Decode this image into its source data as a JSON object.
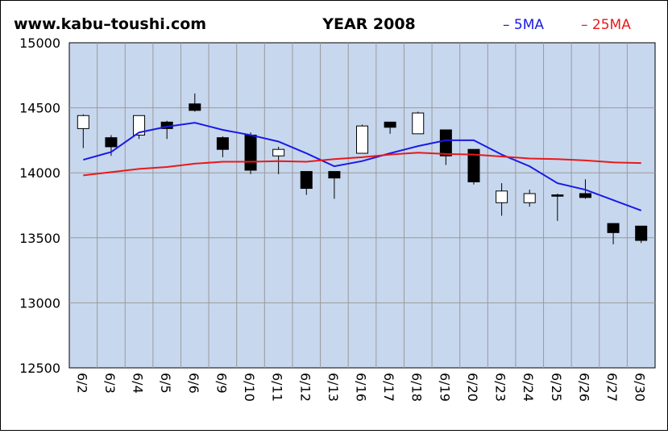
{
  "header": {
    "site": "www.kabu–toushi.com",
    "title": "YEAR 2008",
    "legend_5ma": "– 5MA",
    "legend_25ma": "– 25MA"
  },
  "colors": {
    "plot_bg": "#c7d7ee",
    "ma5": "#1a1ae6",
    "ma25": "#e81a1a",
    "grid": "#9a9a9a",
    "frame": "#000000",
    "up_fill": "#ffffff",
    "down_fill": "#000000"
  },
  "chart_data": {
    "type": "candlestick",
    "title": "YEAR 2008",
    "ylim": [
      12500,
      15000
    ],
    "yticks": [
      12500,
      13000,
      13500,
      14000,
      14500,
      15000
    ],
    "grid": true,
    "legend_position": "top-right",
    "categories": [
      "6/2",
      "6/3",
      "6/4",
      "6/5",
      "6/6",
      "6/9",
      "6/10",
      "6/11",
      "6/12",
      "6/13",
      "6/16",
      "6/17",
      "6/18",
      "6/19",
      "6/20",
      "6/23",
      "6/24",
      "6/25",
      "6/26",
      "6/27",
      "6/30"
    ],
    "ohlc": [
      {
        "o": 14340,
        "h": 14450,
        "l": 14190,
        "c": 14440
      },
      {
        "o": 14270,
        "h": 14290,
        "l": 14130,
        "c": 14200
      },
      {
        "o": 14290,
        "h": 14430,
        "l": 14260,
        "c": 14440
      },
      {
        "o": 14390,
        "h": 14400,
        "l": 14260,
        "c": 14340
      },
      {
        "o": 14530,
        "h": 14610,
        "l": 14470,
        "c": 14480
      },
      {
        "o": 14270,
        "h": 14280,
        "l": 14120,
        "c": 14180
      },
      {
        "o": 14290,
        "h": 14310,
        "l": 13990,
        "c": 14020
      },
      {
        "o": 14130,
        "h": 14200,
        "l": 13990,
        "c": 14180
      },
      {
        "o": 14010,
        "h": 14010,
        "l": 13830,
        "c": 13880
      },
      {
        "o": 14010,
        "h": 14010,
        "l": 13800,
        "c": 13960
      },
      {
        "o": 14150,
        "h": 14370,
        "l": 14150,
        "c": 14360
      },
      {
        "o": 14390,
        "h": 14390,
        "l": 14300,
        "c": 14350
      },
      {
        "o": 14300,
        "h": 14470,
        "l": 14300,
        "c": 14460
      },
      {
        "o": 14330,
        "h": 14330,
        "l": 14060,
        "c": 14130
      },
      {
        "o": 14180,
        "h": 14180,
        "l": 13910,
        "c": 13930
      },
      {
        "o": 13770,
        "h": 13920,
        "l": 13670,
        "c": 13860
      },
      {
        "o": 13770,
        "h": 13870,
        "l": 13740,
        "c": 13840
      },
      {
        "o": 13830,
        "h": 13840,
        "l": 13630,
        "c": 13820
      },
      {
        "o": 13840,
        "h": 13950,
        "l": 13800,
        "c": 13810
      },
      {
        "o": 13610,
        "h": 13610,
        "l": 13450,
        "c": 13540
      },
      {
        "o": 13590,
        "h": 13590,
        "l": 13460,
        "c": 13480
      }
    ],
    "series": [
      {
        "name": "5MA",
        "values": [
          14100,
          14160,
          14310,
          14355,
          14385,
          14330,
          14290,
          14240,
          14150,
          14050,
          14090,
          14150,
          14205,
          14250,
          14250,
          14140,
          14050,
          13920,
          13870,
          13790,
          13710
        ]
      },
      {
        "name": "25MA",
        "values": [
          13980,
          14005,
          14030,
          14045,
          14070,
          14085,
          14085,
          14090,
          14085,
          14105,
          14120,
          14140,
          14155,
          14145,
          14140,
          14125,
          14110,
          14105,
          14095,
          14080,
          14075
        ]
      }
    ]
  }
}
